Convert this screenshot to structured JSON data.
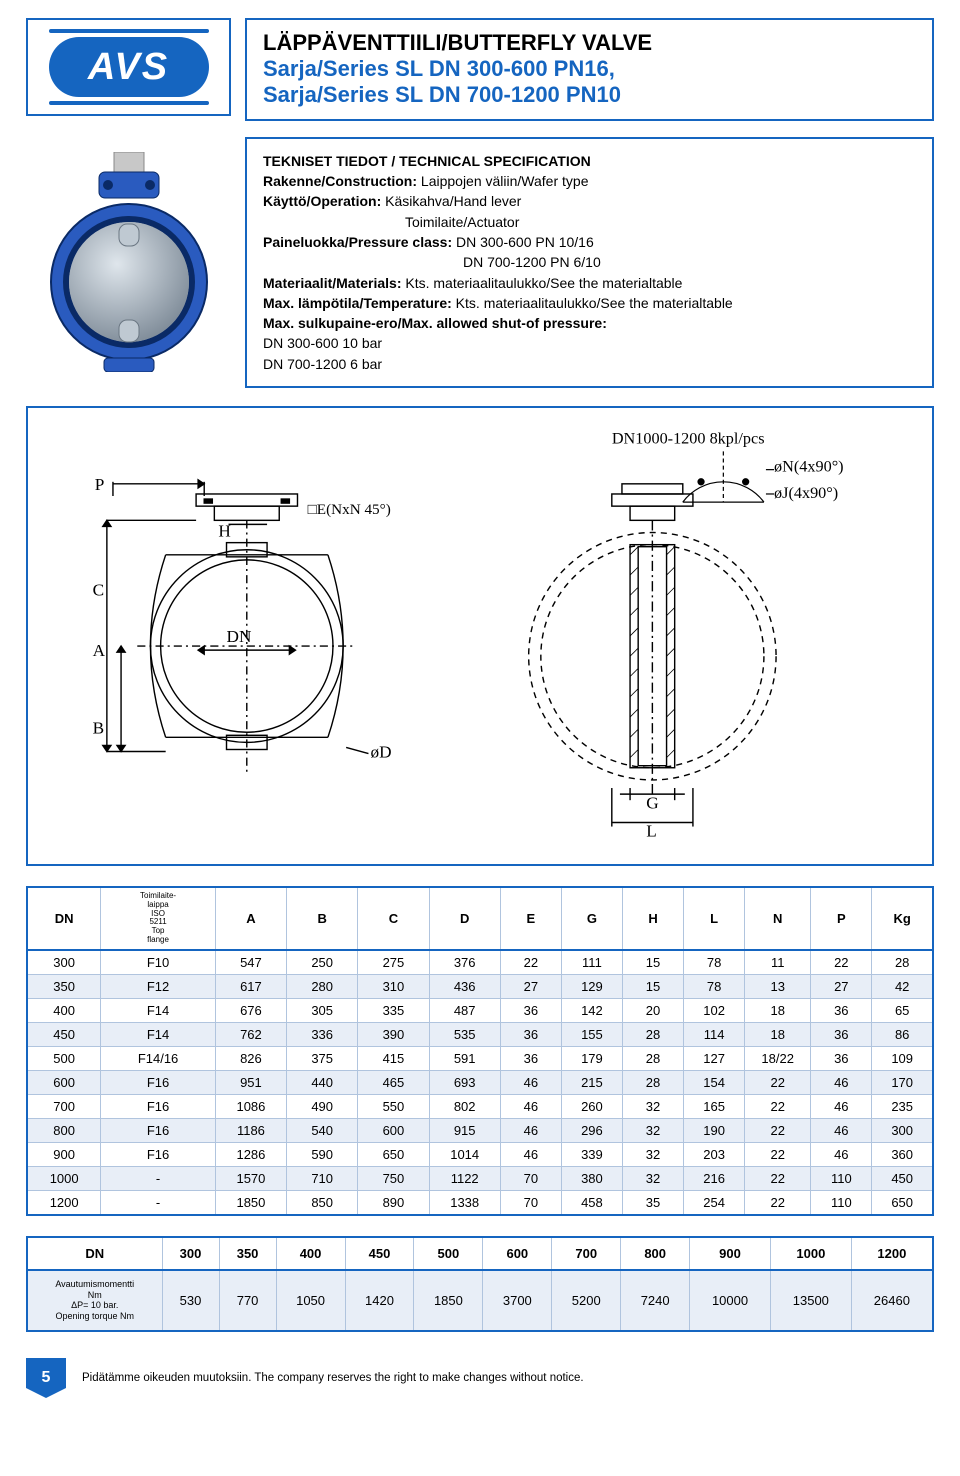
{
  "logo": {
    "text": "AVS"
  },
  "title": {
    "main": "LÄPPÄVENTTIILI/BUTTERFLY VALVE",
    "line1": "Sarja/Series SL DN 300-600 PN16,",
    "line2": "Sarja/Series SL DN 700-1200 PN10"
  },
  "spec": {
    "heading": "TEKNISET TIEDOT / TECHNICAL SPECIFICATION",
    "constr_lbl": "Rakenne/Construction:",
    "constr_val": " Laippojen väliin/Wafer type",
    "oper_lbl": "Käyttö/Operation:",
    "oper_val": " Käsikahva/Hand lever",
    "oper_val2": "Toimilaite/Actuator",
    "press_lbl": "Paineluokka/Pressure class:",
    "press_val": " DN 300-600  PN 10/16",
    "press_val2": "DN 700-1200  PN 6/10",
    "mat_lbl": "Materiaalit/Materials:",
    "mat_val": " Kts. materiaalitaulukko/See the materialtable",
    "temp_lbl": "Max. lämpötila/Temperature:",
    "temp_val": " Kts. materiaalitaulukko/See the materialtable",
    "shut_lbl": "Max. sulkupaine-ero/Max. allowed shut-of pressure:",
    "shut_v1": "DN 300-600  10 bar",
    "shut_v2": "DN 700-1200  6 bar"
  },
  "dims": {
    "headers": [
      "DN",
      "Toimilaite- laippa ISO 5211 Top flange",
      "A",
      "B",
      "C",
      "D",
      "E",
      "G",
      "H",
      "L",
      "N",
      "P",
      "Kg"
    ],
    "rows": [
      [
        "300",
        "F10",
        "547",
        "250",
        "275",
        "376",
        "22",
        "111",
        "15",
        "78",
        "11",
        "22",
        "28"
      ],
      [
        "350",
        "F12",
        "617",
        "280",
        "310",
        "436",
        "27",
        "129",
        "15",
        "78",
        "13",
        "27",
        "42"
      ],
      [
        "400",
        "F14",
        "676",
        "305",
        "335",
        "487",
        "36",
        "142",
        "20",
        "102",
        "18",
        "36",
        "65"
      ],
      [
        "450",
        "F14",
        "762",
        "336",
        "390",
        "535",
        "36",
        "155",
        "28",
        "114",
        "18",
        "36",
        "86"
      ],
      [
        "500",
        "F14/16",
        "826",
        "375",
        "415",
        "591",
        "36",
        "179",
        "28",
        "127",
        "18/22",
        "36",
        "109"
      ],
      [
        "600",
        "F16",
        "951",
        "440",
        "465",
        "693",
        "46",
        "215",
        "28",
        "154",
        "22",
        "46",
        "170"
      ],
      [
        "700",
        "F16",
        "1086",
        "490",
        "550",
        "802",
        "46",
        "260",
        "32",
        "165",
        "22",
        "46",
        "235"
      ],
      [
        "800",
        "F16",
        "1186",
        "540",
        "600",
        "915",
        "46",
        "296",
        "32",
        "190",
        "22",
        "46",
        "300"
      ],
      [
        "900",
        "F16",
        "1286",
        "590",
        "650",
        "1014",
        "46",
        "339",
        "32",
        "203",
        "22",
        "46",
        "360"
      ],
      [
        "1000",
        "-",
        "1570",
        "710",
        "750",
        "1122",
        "70",
        "380",
        "32",
        "216",
        "22",
        "110",
        "450"
      ],
      [
        "1200",
        "-",
        "1850",
        "850",
        "890",
        "1338",
        "70",
        "458",
        "35",
        "254",
        "22",
        "110",
        "650"
      ]
    ],
    "col_widths": [
      "58",
      "90",
      "56",
      "56",
      "56",
      "56",
      "48",
      "48",
      "48",
      "48",
      "52",
      "48",
      "48"
    ],
    "even_bg": "#e8eef7",
    "odd_bg": "#ffffff",
    "border_color": "#1565c0",
    "grid_color": "#b0c4de"
  },
  "torque": {
    "head_label": "DN",
    "head_vals": [
      "300",
      "350",
      "400",
      "450",
      "500",
      "600",
      "700",
      "800",
      "900",
      "1000",
      "1200"
    ],
    "row_label": "Avautumismomentti Nm ΔP= 10 bar. Opening torque  Nm",
    "row_vals": [
      "530",
      "770",
      "1050",
      "1420",
      "1850",
      "3700",
      "5200",
      "7240",
      "10000",
      "13500",
      "26460"
    ]
  },
  "drawing_labels": {
    "top_note": "DN1000-1200 8kpl/pcs",
    "n_lbl": "øN(4x90°)",
    "j_lbl": "øJ(4x90°)",
    "p": "P",
    "h": "H",
    "c": "C",
    "a": "A",
    "b": "B",
    "dn": "DN",
    "e": "□E(NxN 45°)",
    "d": "øD",
    "g": "G",
    "l": "L"
  },
  "footer": {
    "page": "5",
    "note": "Pidätämme oikeuden muutoksiin. The company reserves the right to make changes without notice."
  },
  "colors": {
    "brand": "#1565c0",
    "text": "#000000",
    "row_alt": "#e8eef7"
  }
}
